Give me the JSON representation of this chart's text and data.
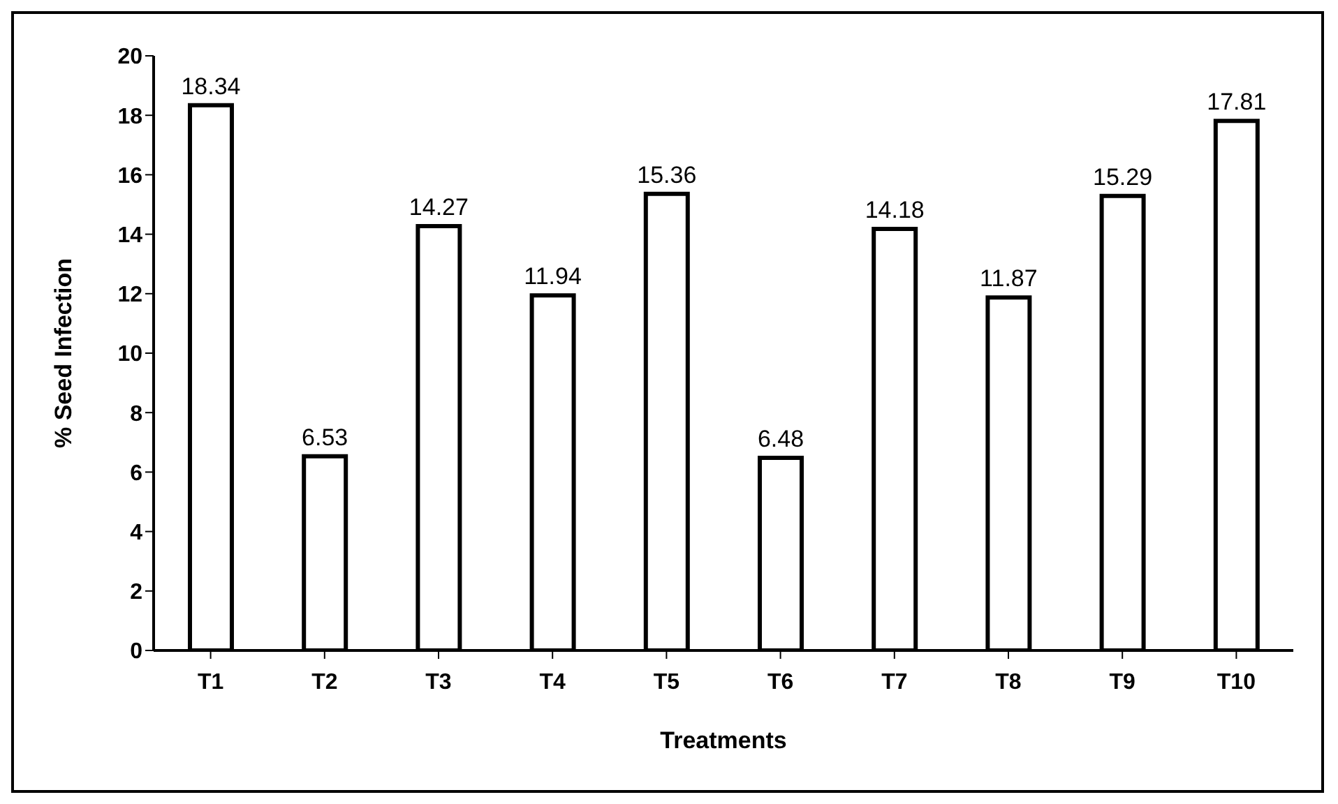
{
  "chart_data": {
    "type": "bar",
    "xlabel": "Treatments",
    "ylabel": "% Seed Infection",
    "categories": [
      "T1",
      "T2",
      "T3",
      "T4",
      "T5",
      "T6",
      "T7",
      "T8",
      "T9",
      "T10"
    ],
    "values": [
      18.34,
      6.53,
      14.27,
      11.94,
      15.36,
      6.48,
      14.18,
      11.87,
      15.29,
      17.81
    ],
    "color": "#ffffff",
    "ylim": [
      0,
      20
    ],
    "yticks": [
      0,
      2,
      4,
      6,
      8,
      10,
      12,
      14,
      16,
      18,
      20
    ],
    "data_labels": true,
    "grid": false,
    "legend": false
  }
}
